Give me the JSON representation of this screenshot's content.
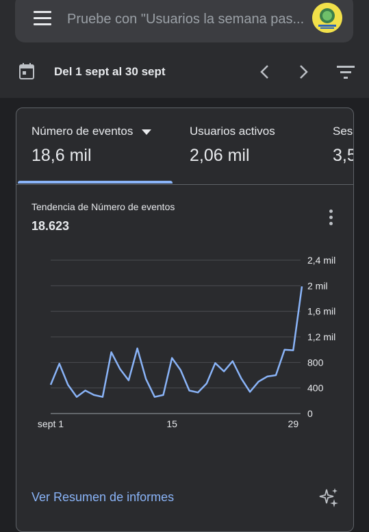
{
  "search": {
    "placeholder": "Pruebe con \"Usuarios la semana pas..."
  },
  "date_range": {
    "label": "Del 1 sept al 30 sept"
  },
  "tabs": [
    {
      "title": "Número de eventos",
      "value": "18,6 mil",
      "selected": true
    },
    {
      "title": "Usuarios activos",
      "value": "2,06 mil"
    },
    {
      "title": "Ses",
      "value": "3,5"
    }
  ],
  "trend": {
    "title": "Tendencia de Número de eventos",
    "value": "18.623"
  },
  "chart_data": {
    "type": "line",
    "x": [
      1,
      2,
      3,
      4,
      5,
      6,
      7,
      8,
      9,
      10,
      11,
      12,
      13,
      14,
      15,
      16,
      17,
      18,
      19,
      20,
      21,
      22,
      23,
      24,
      25,
      26,
      27,
      28,
      29,
      30
    ],
    "series": [
      {
        "values": [
          450,
          780,
          450,
          260,
          360,
          290,
          260,
          960,
          700,
          520,
          1020,
          540,
          260,
          290,
          870,
          680,
          360,
          330,
          470,
          790,
          660,
          820,
          550,
          340,
          500,
          580,
          600,
          1000,
          990,
          1990
        ]
      }
    ],
    "xtick_labels": [
      "sept 1",
      "15",
      "29"
    ],
    "xtick_positions": [
      1,
      15,
      29
    ],
    "yticks": [
      0,
      400,
      800,
      1200,
      1600,
      2000,
      2400
    ],
    "ytick_labels": [
      "0",
      "400",
      "800",
      "1,2 mil",
      "1,6 mil",
      "2 mil",
      "2,4 mil"
    ],
    "ylim": [
      0,
      2400
    ],
    "grid": true,
    "line_color": "#8ab4f8"
  },
  "footer": {
    "link_label": "Ver Resumen de informes"
  },
  "colors": {
    "accent": "#8ab4f8",
    "background": "#1f2023",
    "card": "#2a2b2e"
  }
}
